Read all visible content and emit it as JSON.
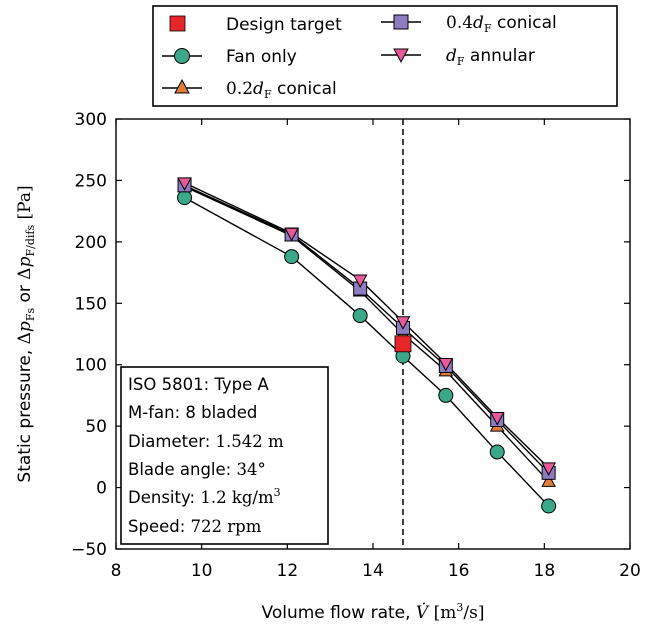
{
  "chart_data": {
    "type": "line",
    "title": "",
    "xlabel": "Volume flow rate, V̇ [m³/s]",
    "ylabel": "Static pressure, Δp_Fs or Δp_F/difs [Pa]",
    "xlim": [
      8,
      20
    ],
    "ylim": [
      -50,
      300
    ],
    "xticks": [
      8,
      10,
      12,
      14,
      16,
      18,
      20
    ],
    "yticks": [
      -50,
      0,
      50,
      100,
      150,
      200,
      250,
      300
    ],
    "xtick_labels": [
      "8",
      "10",
      "12",
      "14",
      "16",
      "18",
      "20"
    ],
    "ytick_labels": [
      "−50",
      "0",
      "50",
      "100",
      "150",
      "200",
      "250",
      "300"
    ],
    "grid": false,
    "legend_position": "top",
    "design_flow_line": 14.7,
    "design_target": {
      "name": "Design target",
      "x": 14.7,
      "y": 117,
      "color": "#e8262a",
      "marker": "square"
    },
    "series": [
      {
        "name": "Fan only",
        "color": "#3aa889",
        "marker": "circle",
        "x": [
          9.6,
          12.1,
          13.7,
          14.7,
          15.7,
          16.9,
          18.1
        ],
        "y": [
          236,
          188,
          140,
          107,
          75,
          29,
          -15
        ]
      },
      {
        "name": "0.2d_F conical",
        "color": "#e07b3a",
        "marker": "triangle-up",
        "x": [
          9.6,
          12.1,
          13.7,
          14.7,
          15.7,
          16.9,
          18.1
        ],
        "y": [
          245,
          205,
          160,
          125,
          95,
          50,
          5
        ]
      },
      {
        "name": "0.4d_F conical",
        "color": "#8e7cc3",
        "marker": "square",
        "x": [
          9.6,
          12.1,
          13.7,
          14.7,
          15.7,
          16.9,
          18.1
        ],
        "y": [
          246,
          206,
          162,
          130,
          99,
          55,
          12
        ]
      },
      {
        "name": "d_F annular",
        "color": "#e8599a",
        "marker": "triangle-down",
        "x": [
          9.6,
          12.1,
          13.7,
          14.7,
          15.7,
          16.9,
          18.1
        ],
        "y": [
          248,
          207,
          169,
          135,
          101,
          57,
          16
        ]
      }
    ],
    "legend": {
      "entries": [
        "Design target",
        "Fan only",
        "0.2d_F conical",
        "0.4d_F conical",
        "d_F annular"
      ]
    },
    "info_box": [
      "ISO 5801: Type A",
      "M-fan: 8 bladed",
      "Diameter: 1.542 m",
      "Blade angle: 34°",
      "Density: 1.2 kg/m³",
      "Speed: 722 rpm"
    ]
  }
}
